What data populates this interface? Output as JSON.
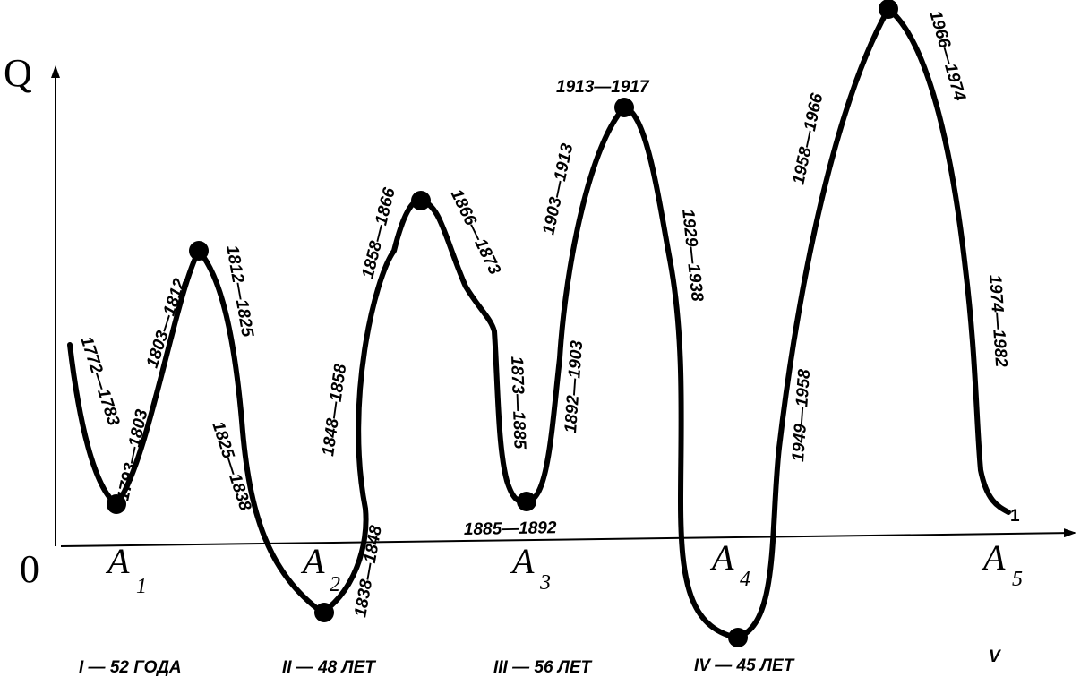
{
  "axes": {
    "y_label": "Q",
    "origin_label": "0"
  },
  "curve_end_label": "1",
  "points": [
    {
      "letter": "A",
      "sub": "1"
    },
    {
      "letter": "A",
      "sub": "2"
    },
    {
      "letter": "A",
      "sub": "3"
    },
    {
      "letter": "A",
      "sub": "4"
    },
    {
      "letter": "A",
      "sub": "5"
    }
  ],
  "periods": [
    "1772—1783",
    "1793—1803",
    "1803—1812",
    "1812—1825",
    "1825—1838",
    "1838—1848",
    "1848—1858",
    "1858—1866",
    "1866—1873",
    "1873—1885",
    "1885—1892",
    "1892—1903",
    "1903—1913",
    "1913—1917",
    "1929—1938",
    "1949—1958",
    "1958—1966",
    "1966—1974",
    "1974—1982"
  ],
  "cycles": [
    "I — 52 ГОДА",
    "II — 48 ЛЕТ",
    "III — 56 ЛЕТ",
    "IV — 45 ЛЕТ",
    "V"
  ]
}
